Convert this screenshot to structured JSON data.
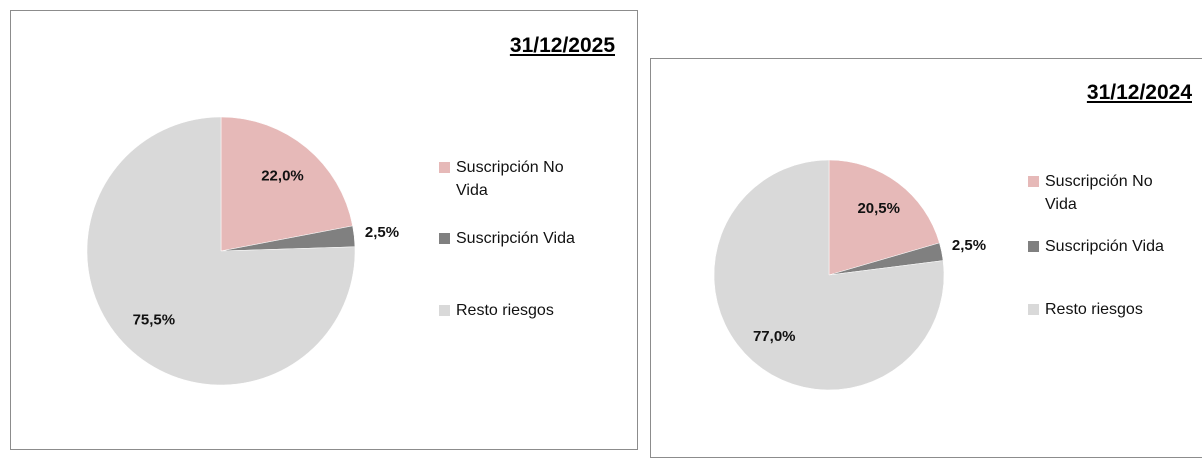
{
  "chart_data": [
    {
      "type": "pie",
      "title": "31/12/2025",
      "categories": [
        "Suscripción No Vida",
        "Suscripción Vida",
        "Resto riesgos"
      ],
      "values": [
        22.0,
        2.5,
        75.5
      ],
      "value_labels": [
        "22,0%",
        "2,5%",
        "75,5%"
      ],
      "colors": [
        "#e6b9b8",
        "#808080",
        "#d9d9d9"
      ]
    },
    {
      "type": "pie",
      "title": "31/12/2024",
      "categories": [
        "Suscripción No Vida",
        "Suscripción Vida",
        "Resto riesgos"
      ],
      "values": [
        20.5,
        2.5,
        77.0
      ],
      "value_labels": [
        "20,5%",
        "2,5%",
        "77,0%"
      ],
      "colors": [
        "#e6b9b8",
        "#808080",
        "#d9d9d9"
      ]
    }
  ]
}
